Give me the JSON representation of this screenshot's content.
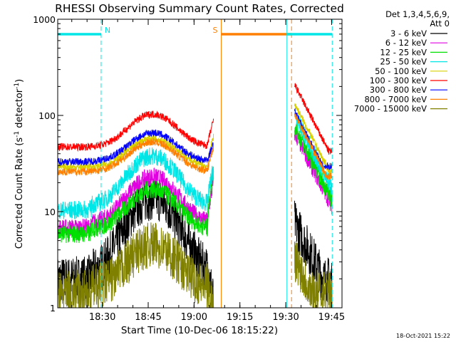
{
  "chart_data": {
    "type": "line",
    "title": "RHESSI Observing Summary Count Rates, Corrected",
    "xlabel": "Start Time (10-Dec-06 18:15:22)",
    "ylabel_main": "Corrected Count Rate (s",
    "ylabel_sup1": "-1",
    "ylabel_mid": " detector",
    "ylabel_sup2": "-1",
    "ylabel_end": ")",
    "yscale": "log",
    "ylim": [
      1,
      1000
    ],
    "xlim_minutes": [
      0,
      93
    ],
    "x_ticks": [
      {
        "label": "18:30",
        "minute": 14.6
      },
      {
        "label": "18:45",
        "minute": 29.6
      },
      {
        "label": "19:00",
        "minute": 44.6
      },
      {
        "label": "19:15",
        "minute": 59.6
      },
      {
        "label": "19:30",
        "minute": 74.6
      },
      {
        "label": "19:45",
        "minute": 89.6
      }
    ],
    "y_ticks": [
      {
        "label": "1",
        "value": 1
      },
      {
        "label": "10",
        "value": 10
      },
      {
        "label": "100",
        "value": 100
      },
      {
        "label": "1000",
        "value": 1000
      }
    ],
    "legend_header": [
      "Det 1,3,4,5,6,9,",
      "Att 0"
    ],
    "legend_position": "top-right",
    "timestamp": "18-Oct-2021 15:22",
    "series": [
      {
        "name": "3 - 6 keV",
        "color": "#000000",
        "base": 2.2,
        "peak": 14,
        "flare": 7
      },
      {
        "name": "6 - 12 keV",
        "color": "#e000e0",
        "base": 7.5,
        "peak": 23,
        "flare": 60
      },
      {
        "name": "12 - 25 keV",
        "color": "#00e000",
        "base": 6.5,
        "peak": 17,
        "flare": 70
      },
      {
        "name": "25 - 50 keV",
        "color": "#00e6e6",
        "base": 11.5,
        "peak": 38,
        "flare": 90
      },
      {
        "name": "50 - 100 keV",
        "color": "#d8d000",
        "base": 29,
        "peak": 58,
        "flare": 120
      },
      {
        "name": "100 - 300 keV",
        "color": "#ff0000",
        "base": 47,
        "peak": 103,
        "flare": 190
      },
      {
        "name": "300 - 800 keV",
        "color": "#0000ff",
        "base": 33,
        "peak": 66,
        "flare": 100
      },
      {
        "name": "800 - 7000 keV",
        "color": "#ff8000",
        "base": 26,
        "peak": 53,
        "flare": 95
      },
      {
        "name": "7000 - 15000 keV",
        "color": "#808000",
        "base": 1.6,
        "peak": 4.5,
        "flare": 3
      }
    ],
    "annotations": [
      {
        "label": "N",
        "color": "#00e6e6",
        "start": 0,
        "end": 14.2
      },
      {
        "label": "S",
        "color": "#ff8000",
        "start": 53.5,
        "end": 76.5
      },
      {
        "label": "",
        "color": "#00e6e6",
        "start": 75,
        "end": 89.8
      }
    ]
  }
}
